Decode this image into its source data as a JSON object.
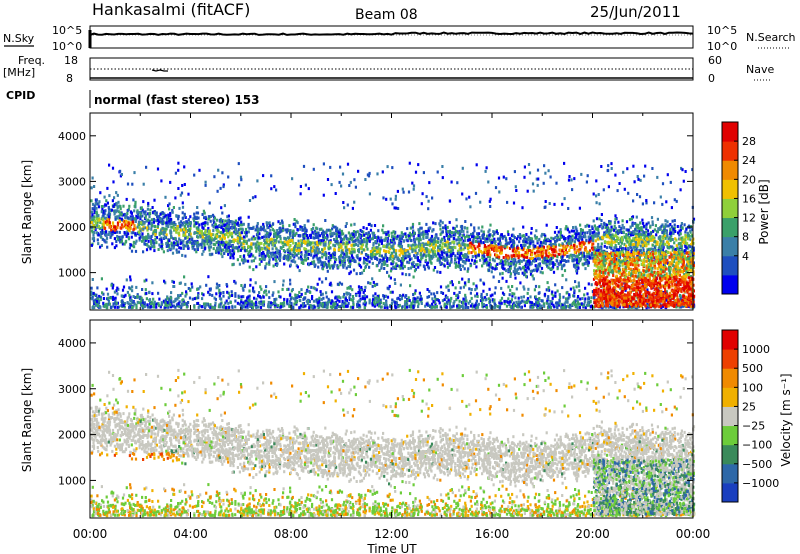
{
  "header": {
    "station": "Hankasalmi (fitACF)",
    "beam": "Beam 08",
    "date": "25/Jun/2011"
  },
  "top_panels": {
    "nsky_label": "N.Sky",
    "nsky_ticks": [
      "10^5",
      "10^0"
    ],
    "nsearch_label": "N.Search",
    "nsearch_ticks": [
      "10^5",
      "10^0"
    ],
    "freq_label": "Freq.",
    "freq_unit": "[MHz]",
    "freq_ticks": [
      "18",
      "8"
    ],
    "nave_label": "Nave",
    "nave_ticks": [
      "60",
      "0"
    ],
    "cpid_label": "CPID",
    "cpid_text": "normal (fast stereo) 153"
  },
  "chart_data": [
    {
      "type": "heatmap",
      "name": "power",
      "ylabel": "Slant Range [km]",
      "yticks": [
        "4000",
        "3000",
        "2000",
        "1000"
      ],
      "yrange": [
        180,
        4500
      ],
      "colorbar_label": "Power [dB]",
      "colorbar_ticks": [
        "28",
        "24",
        "20",
        "16",
        "12",
        "8",
        "4"
      ],
      "colorbar_colors": [
        "#0000ee",
        "#1e4fbf",
        "#3a7fa8",
        "#3aa06a",
        "#8fcf3a",
        "#f0c000",
        "#f08a00",
        "#ee3000",
        "#e00000"
      ]
    },
    {
      "type": "heatmap",
      "name": "velocity",
      "ylabel": "Slant Range [km]",
      "yticks": [
        "4000",
        "3000",
        "2000",
        "1000"
      ],
      "yrange": [
        180,
        4500
      ],
      "colorbar_label": "Velocity [m s⁻¹]",
      "colorbar_ticks": [
        "1000",
        "500",
        "100",
        "25",
        "−25",
        "−100",
        "−500",
        "−1000"
      ],
      "colorbar_colors": [
        "#1a3fbf",
        "#2e68a8",
        "#3a8a5a",
        "#6ccc3a",
        "#c8c8c0",
        "#f0b000",
        "#f08a00",
        "#ee4000",
        "#e00000"
      ],
      "xlabel": "Time UT",
      "xticks": [
        "00:00",
        "04:00",
        "08:00",
        "12:00",
        "16:00",
        "20:00",
        "00:00"
      ],
      "xrange_hours": [
        0,
        24
      ]
    }
  ]
}
